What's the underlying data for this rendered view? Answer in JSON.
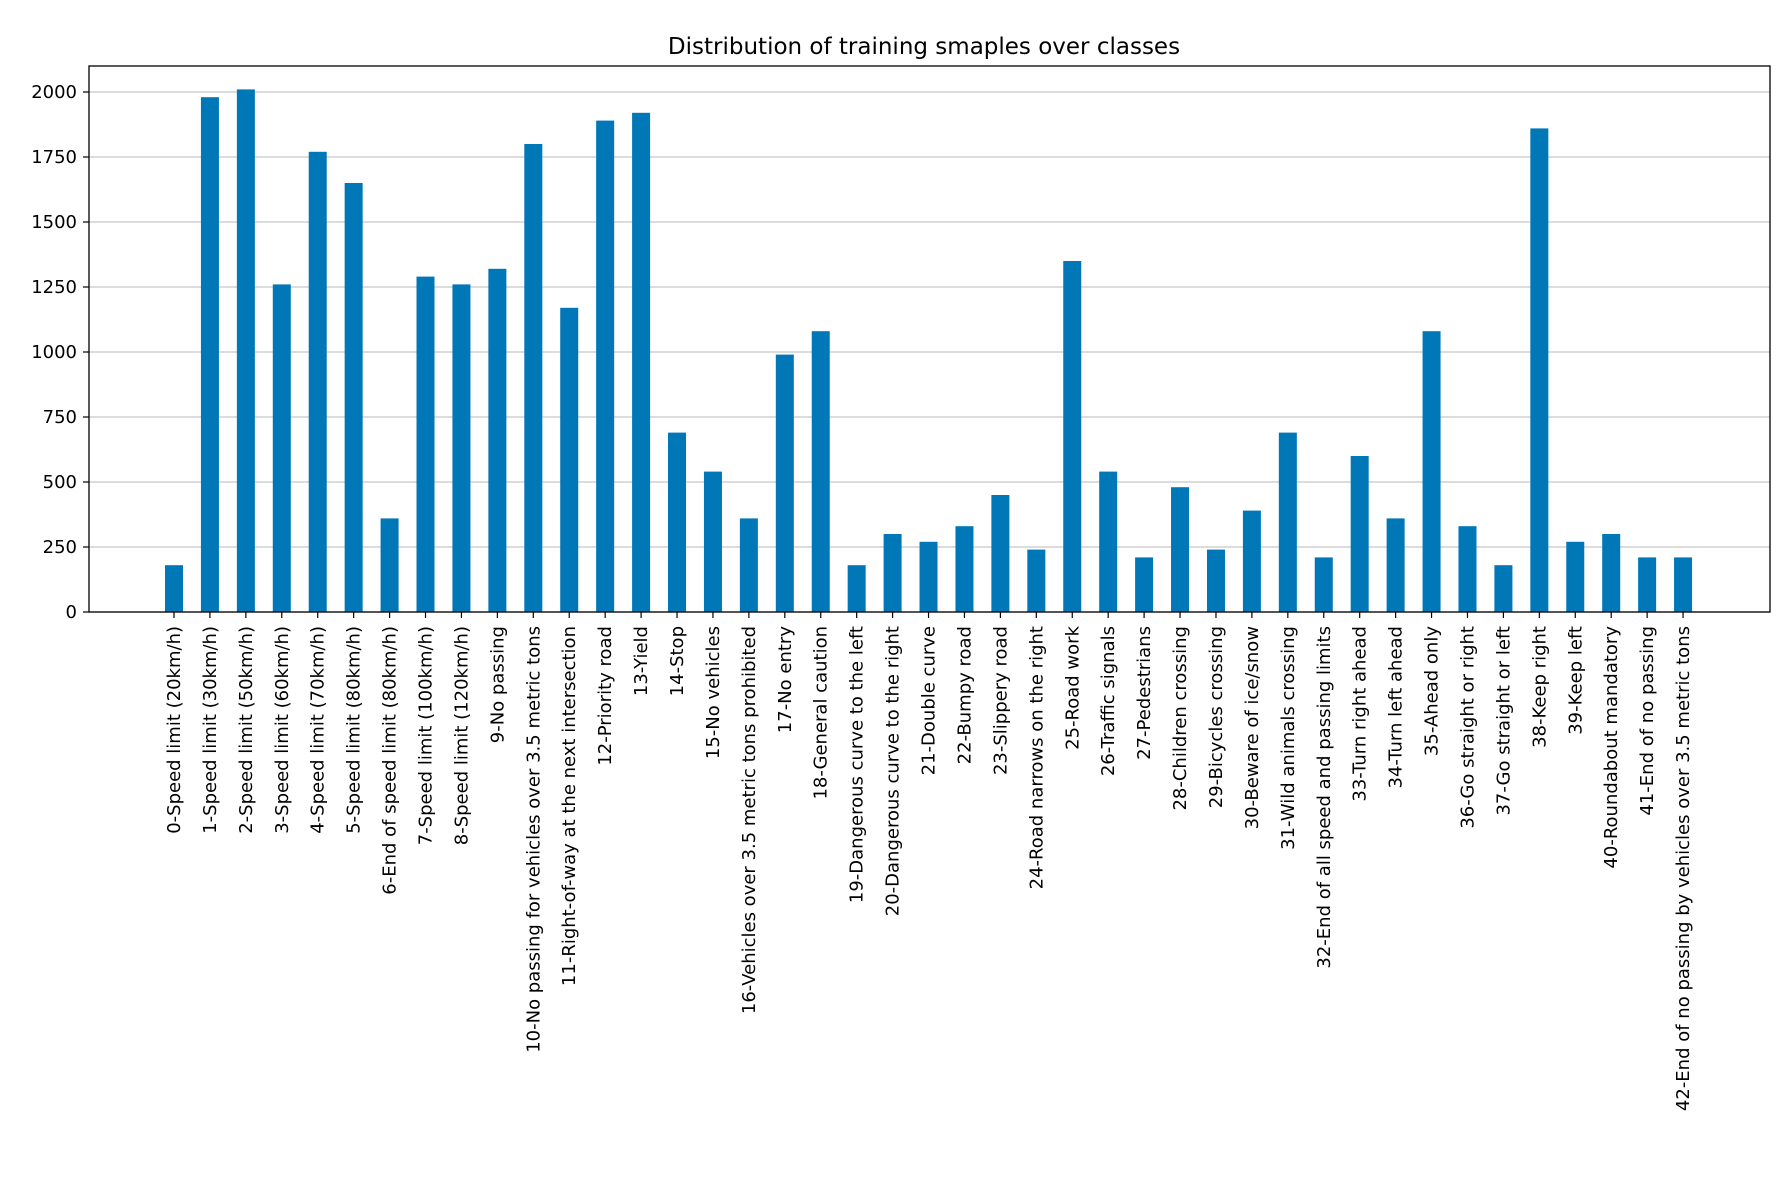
{
  "chart_data": {
    "type": "bar",
    "title": "Distribution of training smaples over classes",
    "xlabel": "",
    "ylabel": "",
    "ylim": [
      0,
      2100
    ],
    "yticks": [
      0,
      250,
      500,
      750,
      1000,
      1250,
      1500,
      1750,
      2000
    ],
    "grid": "horizontal",
    "bar_color": "#0077b6",
    "grid_color": "#c8c8c8",
    "categories": [
      "0-Speed limit (20km/h)",
      "1-Speed limit (30km/h)",
      "2-Speed limit (50km/h)",
      "3-Speed limit (60km/h)",
      "4-Speed limit (70km/h)",
      "5-Speed limit (80km/h)",
      "6-End of speed limit (80km/h)",
      "7-Speed limit (100km/h)",
      "8-Speed limit (120km/h)",
      "9-No passing",
      "10-No passing for vehicles over 3.5 metric tons",
      "11-Right-of-way at the next intersection",
      "12-Priority road",
      "13-Yield",
      "14-Stop",
      "15-No vehicles",
      "16-Vehicles over 3.5 metric tons prohibited",
      "17-No entry",
      "18-General caution",
      "19-Dangerous curve to the left",
      "20-Dangerous curve to the right",
      "21-Double curve",
      "22-Bumpy road",
      "23-Slippery road",
      "24-Road narrows on the right",
      "25-Road work",
      "26-Traffic signals",
      "27-Pedestrians",
      "28-Children crossing",
      "29-Bicycles crossing",
      "30-Beware of ice/snow",
      "31-Wild animals crossing",
      "32-End of all speed and passing limits",
      "33-Turn right ahead",
      "34-Turn left ahead",
      "35-Ahead only",
      "36-Go straight or right",
      "37-Go straight or left",
      "38-Keep right",
      "39-Keep left",
      "40-Roundabout mandatory",
      "41-End of no passing",
      "42-End of no passing by vehicles over 3.5 metric tons"
    ],
    "values": [
      180,
      1980,
      2010,
      1260,
      1770,
      1650,
      360,
      1290,
      1260,
      1320,
      1800,
      1170,
      1890,
      1920,
      690,
      540,
      360,
      990,
      1080,
      180,
      300,
      270,
      330,
      450,
      240,
      1350,
      540,
      210,
      480,
      240,
      390,
      690,
      210,
      600,
      360,
      1080,
      330,
      180,
      1860,
      270,
      300,
      210,
      210
    ]
  }
}
